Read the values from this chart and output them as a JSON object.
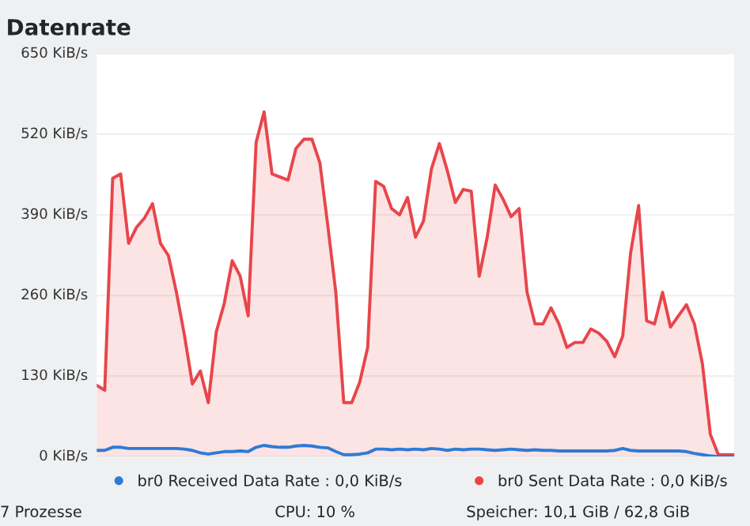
{
  "chart_data": {
    "type": "area",
    "title": "Datenrate",
    "categories": [
      null,
      null,
      null,
      null,
      null,
      null,
      null,
      null,
      null,
      null,
      null,
      null,
      null,
      null,
      null,
      null,
      null,
      null,
      null,
      null,
      null,
      null,
      null,
      null,
      null,
      null,
      null,
      null,
      null,
      null,
      null,
      null,
      null,
      null,
      null,
      null,
      null,
      null,
      null,
      null,
      null,
      null,
      null,
      null,
      null,
      null,
      null,
      null,
      null,
      null,
      null,
      null,
      null,
      null,
      null,
      null,
      null,
      null,
      null,
      null,
      null,
      null,
      null,
      null,
      null,
      null,
      null,
      null,
      null,
      null,
      null,
      null,
      null,
      null,
      null,
      null,
      null,
      null,
      null,
      null,
      null
    ],
    "series": [
      {
        "name": "br0 Received Data Rate : 0,0 KiB/s",
        "type": "line",
        "color": "#2e7bd6",
        "values": [
          10,
          10,
          15,
          15,
          13,
          13,
          13,
          13,
          13,
          13,
          13,
          12,
          10,
          6,
          4,
          6,
          8,
          8,
          9,
          8,
          15,
          18,
          16,
          15,
          15,
          17,
          18,
          17,
          15,
          14,
          8,
          3,
          3,
          4,
          6,
          12,
          12,
          11,
          12,
          11,
          12,
          11,
          13,
          12,
          10,
          12,
          11,
          12,
          12,
          11,
          10,
          11,
          12,
          11,
          10,
          11,
          10,
          10,
          9,
          9,
          9,
          9,
          9,
          9,
          9,
          10,
          13,
          10,
          9,
          9,
          9,
          9,
          9,
          9,
          8,
          5,
          3,
          1,
          0,
          0,
          0
        ]
      },
      {
        "name": "br0 Sent Data Rate : 0,0 KiB/s",
        "color": "#e8454a",
        "values": [
          115,
          107,
          449,
          456,
          344,
          370,
          385,
          408,
          344,
          324,
          265,
          196,
          117,
          138,
          87,
          201,
          247,
          316,
          291,
          227,
          507,
          556,
          456,
          451,
          446,
          497,
          512,
          512,
          474,
          372,
          265,
          87,
          87,
          120,
          176,
          444,
          436,
          400,
          390,
          418,
          354,
          380,
          464,
          505,
          461,
          410,
          431,
          428,
          291,
          354,
          438,
          415,
          387,
          400,
          265,
          214,
          214,
          240,
          214,
          176,
          184,
          184,
          206,
          199,
          186,
          161,
          194,
          329,
          405,
          219,
          214,
          265,
          209,
          227,
          245,
          214,
          150,
          36,
          3,
          3,
          3
        ]
      }
    ],
    "ylim": [
      0,
      650
    ],
    "yticks": [
      {
        "value": 0,
        "label": "0 KiB/s"
      },
      {
        "value": 130,
        "label": "130 KiB/s"
      },
      {
        "value": 260,
        "label": "260 KiB/s"
      },
      {
        "value": 390,
        "label": "390 KiB/s"
      },
      {
        "value": 520,
        "label": "520 KiB/s"
      },
      {
        "value": 650,
        "label": "650 KiB/s"
      }
    ],
    "grid": "y",
    "legend": "bottom",
    "tick_labels": "y",
    "annotations": [
      "7 Prozesse",
      "CPU: 10 %",
      "Speicher: 10,1 GiB / 62,8 GiB"
    ]
  }
}
